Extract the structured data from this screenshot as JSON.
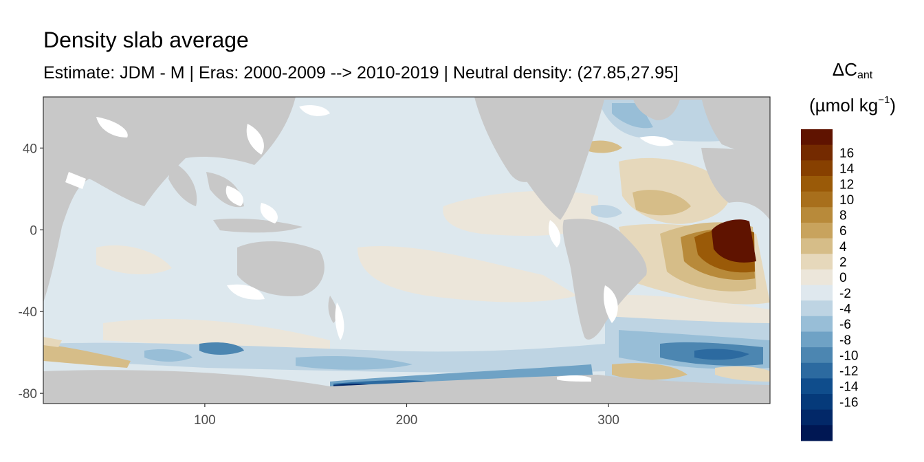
{
  "chart_data": {
    "type": "heatmap",
    "title": "Density slab average",
    "subtitle": "Estimate: JDM - M | Eras: 2000-2009 --> 2010-2019 | Neutral density: (27.85,27.95]",
    "xlabel": "",
    "ylabel": "",
    "xlim": [
      20,
      380
    ],
    "ylim": [
      -85,
      65
    ],
    "x_ticks": [
      100,
      200,
      300
    ],
    "y_ticks": [
      40,
      0,
      -40,
      -80
    ],
    "grid": false,
    "legend": {
      "placement": "right",
      "title_main": "ΔC",
      "title_sub": "ant",
      "unit_main": "(µmol kg",
      "unit_sup": "−1",
      "unit_close": ")",
      "tick_labels": [
        "16",
        "14",
        "12",
        "10",
        "8",
        "6",
        "4",
        "2",
        "0",
        "-2",
        "-4",
        "-6",
        "-8",
        "-10",
        "-12",
        "-14",
        "-16"
      ],
      "colors": [
        "#5f1300",
        "#742a00",
        "#874000",
        "#9a5a08",
        "#a86f1c",
        "#b88a3a",
        "#c8a35d",
        "#d6bd88",
        "#e6d8bb",
        "#ece6da",
        "#dfe8ee",
        "#bed4e3",
        "#98bed7",
        "#6fa2c5",
        "#4c86b1",
        "#2c6aa0",
        "#0f4d8c",
        "#053a7a",
        "#022868",
        "#001753"
      ]
    },
    "colors": {
      "land": "#c8c8c8",
      "background_ocean": "#dde8ee",
      "missing": "#ffffff"
    }
  }
}
